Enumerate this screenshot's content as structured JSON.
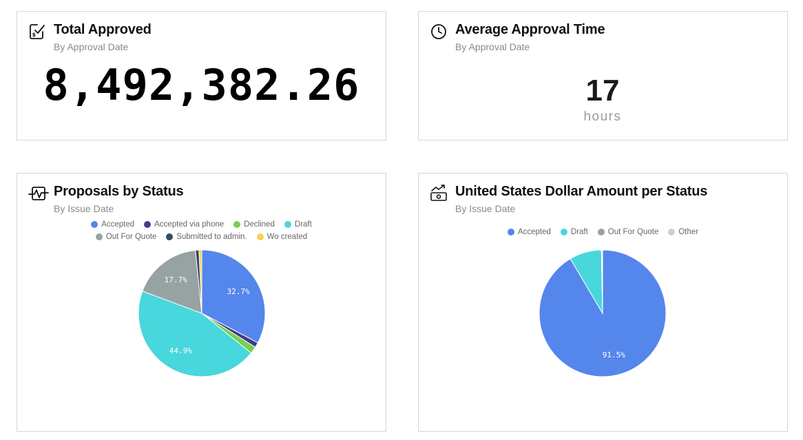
{
  "total_approved": {
    "title": "Total Approved",
    "subtitle": "By Approval Date",
    "value": "8,492,382.26",
    "icon": "approved-check-dollar-icon"
  },
  "avg_approval": {
    "title": "Average Approval Time",
    "subtitle": "By Approval Date",
    "value": "17",
    "unit": "hours",
    "icon": "clock-icon"
  },
  "chart_data": [
    {
      "type": "pie",
      "title": "Proposals by Status",
      "subtitle": "By Issue Date",
      "icon": "pulse-chart-icon",
      "legend_placement": "top",
      "legend_rows": [
        [
          "Accepted",
          "Accepted via phone",
          "Declined",
          "Draft"
        ],
        [
          "Out For Quote",
          "Submitted to admin.",
          "Wo created"
        ]
      ],
      "slices": [
        {
          "name": "Accepted",
          "value": 32.7,
          "color": "#5586ec",
          "label": "32.7%"
        },
        {
          "name": "Accepted via phone",
          "value": 1.3,
          "color": "#3d3d8f",
          "label": ""
        },
        {
          "name": "Declined",
          "value": 1.8,
          "color": "#77d04f",
          "label": ""
        },
        {
          "name": "Draft",
          "value": 44.9,
          "color": "#48d7dc",
          "label": "44.9%"
        },
        {
          "name": "Out For Quote",
          "value": 17.7,
          "color": "#97a2a2",
          "label": "17.7%"
        },
        {
          "name": "Submitted to admin.",
          "value": 0.9,
          "color": "#364a5c",
          "label": ""
        },
        {
          "name": "Wo created",
          "value": 0.7,
          "color": "#fad24e",
          "label": ""
        }
      ]
    },
    {
      "type": "pie",
      "title": "United States Dollar Amount per Status",
      "subtitle": "By Issue Date",
      "icon": "money-trend-icon",
      "legend_placement": "top",
      "legend_rows": [
        [
          "Accepted",
          "Draft",
          "Out For Quote",
          "Other"
        ]
      ],
      "slices": [
        {
          "name": "Accepted",
          "value": 91.5,
          "color": "#5586ec",
          "label": "91.5%"
        },
        {
          "name": "Draft",
          "value": 8.2,
          "color": "#48d7dc",
          "label": ""
        },
        {
          "name": "Out For Quote",
          "value": 0.2,
          "color": "#97a2a2",
          "label": ""
        },
        {
          "name": "Other",
          "value": 0.1,
          "color": "#cfcfcf",
          "label": ""
        }
      ]
    }
  ]
}
